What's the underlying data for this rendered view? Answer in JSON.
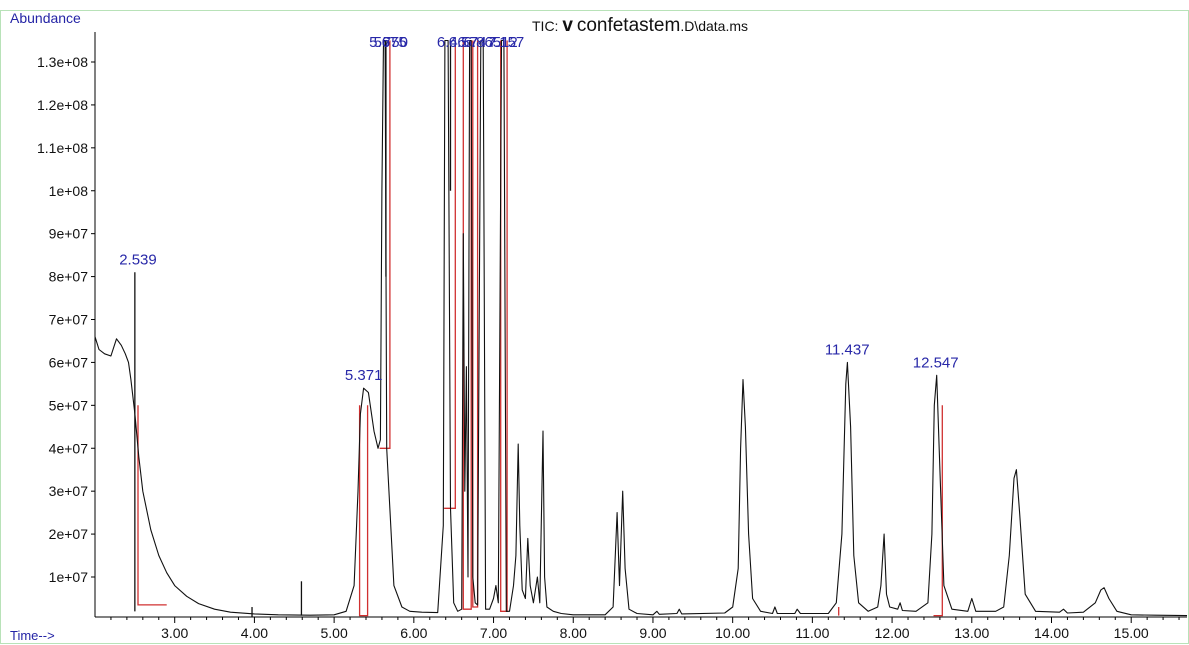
{
  "header": {
    "y_axis_label": "Abundance",
    "x_axis_label": "Time-->",
    "title_prefix": "TIC: ",
    "title_v": "v",
    "title_name": "confetastem",
    "title_suffix": ".D\\data.ms"
  },
  "colors": {
    "trace": "#111111",
    "baseline": "#d03030",
    "peak_label": "#2828a8",
    "axis": "#000000",
    "border": "#b8e2b8"
  },
  "chart_data": {
    "type": "line",
    "title": "TIC: v confetastem.D\\data.ms",
    "xlabel": "Time-->",
    "ylabel": "Abundance",
    "xlim": [
      2.0,
      15.7
    ],
    "ylim": [
      0,
      135000000
    ],
    "x_ticks": [
      3,
      4,
      5,
      6,
      7,
      8,
      9,
      10,
      11,
      12,
      13,
      14,
      15
    ],
    "x_tick_labels": [
      "3.00",
      "4.00",
      "5.00",
      "6.00",
      "7.00",
      "8.00",
      "9.00",
      "10.00",
      "11.00",
      "12.00",
      "13.00",
      "14.00",
      "15.00"
    ],
    "y_ticks": [
      10000000,
      20000000,
      30000000,
      40000000,
      50000000,
      60000000,
      70000000,
      80000000,
      90000000,
      100000000,
      110000000,
      120000000,
      130000000
    ],
    "y_tick_labels": [
      "1e+07",
      "2e+07",
      "3e+07",
      "4e+07",
      "5e+07",
      "6e+07",
      "7e+07",
      "8e+07",
      "9e+07",
      "1e+08",
      "1.1e+08",
      "1.2e+08",
      "1.3e+08"
    ],
    "baseline_level": 1000000,
    "series": [
      {
        "kind": "broad",
        "points": [
          [
            2.0,
            66000000
          ],
          [
            2.05,
            63000000
          ],
          [
            2.12,
            62000000
          ],
          [
            2.2,
            61500000
          ],
          [
            2.27,
            65500000
          ],
          [
            2.33,
            64000000
          ],
          [
            2.38,
            62000000
          ],
          [
            2.42,
            60000000
          ],
          [
            2.45,
            56000000
          ],
          [
            2.5,
            48000000
          ],
          [
            2.55,
            38000000
          ],
          [
            2.6,
            30000000
          ],
          [
            2.7,
            21000000
          ],
          [
            2.8,
            15000000
          ],
          [
            2.9,
            11000000
          ],
          [
            3.0,
            8000000
          ],
          [
            3.15,
            5500000
          ],
          [
            3.3,
            3800000
          ],
          [
            3.5,
            2500000
          ],
          [
            3.7,
            1800000
          ],
          [
            4.0,
            1400000
          ],
          [
            4.3,
            1200000
          ],
          [
            4.7,
            1100000
          ],
          [
            5.0,
            1200000
          ],
          [
            5.15,
            2000000
          ],
          [
            5.25,
            8000000
          ],
          [
            5.3,
            30000000
          ],
          [
            5.33,
            48000000
          ],
          [
            5.37,
            54000000
          ],
          [
            5.43,
            53000000
          ],
          [
            5.5,
            44000000
          ],
          [
            5.55,
            40000000
          ],
          [
            5.58,
            42000000
          ],
          [
            5.6,
            100000000
          ],
          [
            5.62,
            135000000
          ],
          [
            5.64,
            135000000
          ],
          [
            5.66,
            40000000
          ],
          [
            5.75,
            8000000
          ],
          [
            5.85,
            3000000
          ],
          [
            5.95,
            2000000
          ],
          [
            6.1,
            1800000
          ],
          [
            6.3,
            1700000
          ],
          [
            6.37,
            22000000
          ],
          [
            6.39,
            135000000
          ],
          [
            6.41,
            135000000
          ],
          [
            6.43,
            135000000
          ],
          [
            6.46,
            26000000
          ],
          [
            6.5,
            4000000
          ],
          [
            6.55,
            2000000
          ],
          [
            6.6,
            2500000
          ],
          [
            6.62,
            90000000
          ],
          [
            6.64,
            30000000
          ],
          [
            6.66,
            59000000
          ],
          [
            6.68,
            10000000
          ],
          [
            6.7,
            135000000
          ],
          [
            6.72,
            135000000
          ],
          [
            6.74,
            10000000
          ],
          [
            6.77,
            4000000
          ],
          [
            6.8,
            3500000
          ],
          [
            6.84,
            135000000
          ],
          [
            6.87,
            135000000
          ],
          [
            6.9,
            2500000
          ],
          [
            6.95,
            2500000
          ],
          [
            7.0,
            5000000
          ],
          [
            7.03,
            8000000
          ],
          [
            7.06,
            4000000
          ],
          [
            7.1,
            135000000
          ],
          [
            7.13,
            135000000
          ],
          [
            7.16,
            2000000
          ],
          [
            7.2,
            2000000
          ],
          [
            7.25,
            8000000
          ],
          [
            7.28,
            15000000
          ],
          [
            7.31,
            41000000
          ],
          [
            7.33,
            22000000
          ],
          [
            7.36,
            7000000
          ],
          [
            7.4,
            5000000
          ],
          [
            7.43,
            19000000
          ],
          [
            7.46,
            8000000
          ],
          [
            7.5,
            4000000
          ],
          [
            7.55,
            10000000
          ],
          [
            7.58,
            4000000
          ],
          [
            7.62,
            44000000
          ],
          [
            7.64,
            10000000
          ],
          [
            7.67,
            3000000
          ],
          [
            7.75,
            2000000
          ],
          [
            7.85,
            1500000
          ],
          [
            8.0,
            1200000
          ],
          [
            8.4,
            1200000
          ],
          [
            8.5,
            3000000
          ],
          [
            8.55,
            25000000
          ],
          [
            8.58,
            8000000
          ],
          [
            8.62,
            30000000
          ],
          [
            8.65,
            12000000
          ],
          [
            8.7,
            2500000
          ],
          [
            8.8,
            1500000
          ],
          [
            9.0,
            1200000
          ],
          [
            9.05,
            2000000
          ],
          [
            9.08,
            1300000
          ],
          [
            9.3,
            1500000
          ],
          [
            9.33,
            2500000
          ],
          [
            9.36,
            1400000
          ],
          [
            9.9,
            1600000
          ],
          [
            10.0,
            3000000
          ],
          [
            10.07,
            12000000
          ],
          [
            10.1,
            40000000
          ],
          [
            10.13,
            56000000
          ],
          [
            10.16,
            45000000
          ],
          [
            10.2,
            20000000
          ],
          [
            10.25,
            5000000
          ],
          [
            10.35,
            2000000
          ],
          [
            10.5,
            1500000
          ],
          [
            10.53,
            3000000
          ],
          [
            10.56,
            1500000
          ],
          [
            10.78,
            1500000
          ],
          [
            10.81,
            2500000
          ],
          [
            10.85,
            1500000
          ],
          [
            11.2,
            1500000
          ],
          [
            11.3,
            4000000
          ],
          [
            11.37,
            20000000
          ],
          [
            11.42,
            55000000
          ],
          [
            11.44,
            60000000
          ],
          [
            11.48,
            45000000
          ],
          [
            11.52,
            15000000
          ],
          [
            11.58,
            4000000
          ],
          [
            11.7,
            2000000
          ],
          [
            11.82,
            3000000
          ],
          [
            11.86,
            8000000
          ],
          [
            11.9,
            20000000
          ],
          [
            11.93,
            6000000
          ],
          [
            11.97,
            3000000
          ],
          [
            12.07,
            2500000
          ],
          [
            12.1,
            4000000
          ],
          [
            12.13,
            2200000
          ],
          [
            12.3,
            2000000
          ],
          [
            12.45,
            4000000
          ],
          [
            12.5,
            20000000
          ],
          [
            12.53,
            50000000
          ],
          [
            12.56,
            57000000
          ],
          [
            12.6,
            35000000
          ],
          [
            12.65,
            8000000
          ],
          [
            12.75,
            2500000
          ],
          [
            12.95,
            2000000
          ],
          [
            13.0,
            5000000
          ],
          [
            13.05,
            2000000
          ],
          [
            13.3,
            2000000
          ],
          [
            13.4,
            3000000
          ],
          [
            13.47,
            15000000
          ],
          [
            13.53,
            33000000
          ],
          [
            13.56,
            35000000
          ],
          [
            13.6,
            25000000
          ],
          [
            13.67,
            6000000
          ],
          [
            13.8,
            2000000
          ],
          [
            14.1,
            1800000
          ],
          [
            14.15,
            2500000
          ],
          [
            14.2,
            1600000
          ],
          [
            14.4,
            1800000
          ],
          [
            14.55,
            4000000
          ],
          [
            14.62,
            7000000
          ],
          [
            14.66,
            7500000
          ],
          [
            14.72,
            5000000
          ],
          [
            14.82,
            2000000
          ],
          [
            15.0,
            1200000
          ],
          [
            15.3,
            1100000
          ],
          [
            15.7,
            1000000
          ]
        ]
      }
    ],
    "spikes": [
      [
        2.5,
        2000000,
        81000000
      ],
      [
        3.97,
        800000,
        3000000
      ],
      [
        4.59,
        1000000,
        9000000
      ],
      [
        5.65,
        80000000,
        135000000
      ],
      [
        6.46,
        100000000,
        135000000
      ]
    ],
    "baselines": [
      [
        [
          2.539,
          50000000
        ],
        [
          2.539,
          3500000
        ],
        [
          2.85,
          3500000
        ],
        [
          2.9,
          3500000
        ]
      ],
      [
        [
          5.32,
          50000000
        ],
        [
          5.32,
          1000000
        ],
        [
          5.42,
          1000000
        ],
        [
          5.42,
          50000000
        ]
      ],
      [
        [
          5.57,
          40000000
        ],
        [
          5.7,
          40000000
        ],
        [
          5.7,
          135000000
        ]
      ],
      [
        [
          6.38,
          26000000
        ],
        [
          6.52,
          26000000
        ],
        [
          6.52,
          135000000
        ]
      ],
      [
        [
          6.62,
          135000000
        ],
        [
          6.62,
          2500000
        ],
        [
          6.72,
          2500000
        ],
        [
          6.72,
          135000000
        ]
      ],
      [
        [
          6.74,
          135000000
        ],
        [
          6.74,
          3000000
        ],
        [
          6.8,
          3000000
        ],
        [
          6.8,
          135000000
        ]
      ],
      [
        [
          7.09,
          135000000
        ],
        [
          7.09,
          2000000
        ],
        [
          7.17,
          2000000
        ],
        [
          7.17,
          135000000
        ]
      ],
      [
        [
          11.33,
          1000000
        ],
        [
          11.33,
          3000000
        ]
      ],
      [
        [
          12.52,
          1000000
        ],
        [
          12.63,
          1000000
        ],
        [
          12.63,
          50000000
        ]
      ]
    ],
    "peak_labels": [
      {
        "text": "2.539",
        "x": 2.539,
        "y": 81000000
      },
      {
        "text": "5.371",
        "x": 5.371,
        "y": 54000000
      },
      {
        "text": "56",
        "x": 5.6,
        "y": 135000000
      },
      {
        "text": "5.675",
        "x": 5.675,
        "y": 135000000
      },
      {
        "text": "750",
        "x": 5.77,
        "y": 135000000
      },
      {
        "text": "6.4",
        "x": 6.42,
        "y": 135000000
      },
      {
        "text": "6.57",
        "x": 6.62,
        "y": 135000000
      },
      {
        "text": "6.74",
        "x": 6.73,
        "y": 135000000
      },
      {
        "text": "6.865",
        "x": 6.86,
        "y": 135000000
      },
      {
        "text": "7.12",
        "x": 7.12,
        "y": 135000000
      },
      {
        "text": "7.157",
        "x": 7.15,
        "y": 135000000
      },
      {
        "text": "11.437",
        "x": 11.437,
        "y": 60000000
      },
      {
        "text": "12.547",
        "x": 12.547,
        "y": 57000000
      }
    ]
  }
}
